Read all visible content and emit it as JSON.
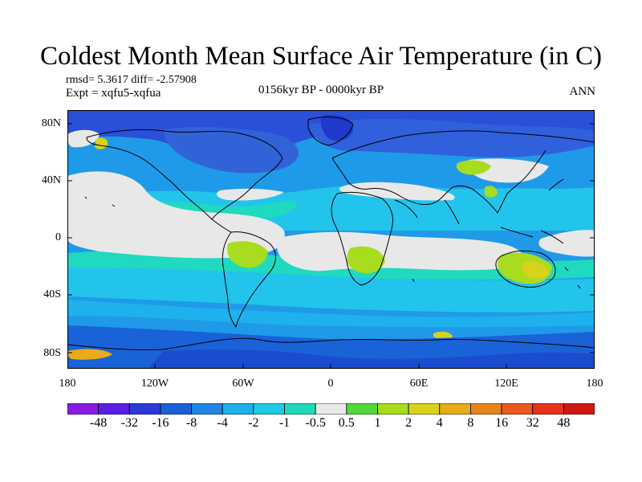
{
  "title": "Coldest Month Mean Surface Air Temperature (in C)",
  "stats": "rmsd= 5.3617 diff= -2.57908",
  "experiment": "Expt = xqfu5-xqfua",
  "period": "0156kyr BP - 0000kyr BP",
  "season": "ANN",
  "lat_labels": [
    "80N",
    "40N",
    "0",
    "40S",
    "80S"
  ],
  "lon_labels": [
    "180",
    "120W",
    "60W",
    "0",
    "60E",
    "120E",
    "180"
  ],
  "colorbar": {
    "labels": [
      "-48",
      "-32",
      "-16",
      "-8",
      "-4",
      "-2",
      "-1",
      "-0.5",
      "0.5",
      "1",
      "2",
      "4",
      "8",
      "16",
      "32",
      "48"
    ],
    "colors": [
      "#8a1ae0",
      "#5a1ee6",
      "#2a3ad8",
      "#1a5fd8",
      "#1f86e6",
      "#1fb0ee",
      "#21cbe6",
      "#1fd9b8",
      "#e8e8e8",
      "#50d83a",
      "#a8dc1e",
      "#d8d21a",
      "#e6ac1a",
      "#e8841a",
      "#ea5a1a",
      "#e8321a",
      "#d01a10"
    ]
  }
}
